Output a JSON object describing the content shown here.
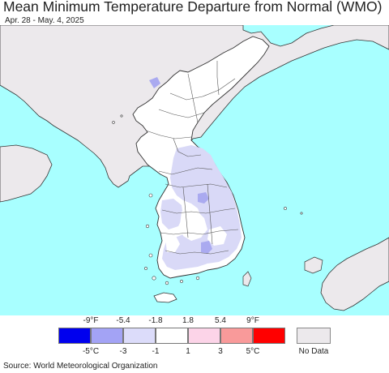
{
  "title": "Mean Minimum Temperature Departure from Normal (WMO)",
  "date_range": "Apr. 28 - May. 4, 2025",
  "colors": {
    "ocean": "#a8ffff",
    "no_data_land": "#ece9ec",
    "near_normal": "#ffffff",
    "slightly_below": "#d9d9f7",
    "below": "#aaaaf0",
    "boundary": "#333333"
  },
  "legend": {
    "fahrenheit_labels": [
      "-9°F",
      "-5.4",
      "-1.8",
      "1.8",
      "5.4",
      "9°F"
    ],
    "celsius_labels": [
      "-5°C",
      "-3",
      "-1",
      "1",
      "3",
      "5°C"
    ],
    "bins": [
      {
        "color": "#0000ee"
      },
      {
        "color": "#a3a3f5"
      },
      {
        "color": "#dcdcfa"
      },
      {
        "color": "#ffffff"
      },
      {
        "color": "#fcd4e8"
      },
      {
        "color": "#f99a9a"
      },
      {
        "color": "#ff0000"
      }
    ],
    "no_data_label": "No Data",
    "no_data_color": "#ece9ec"
  },
  "source": "Source: World Meteorological Organization"
}
